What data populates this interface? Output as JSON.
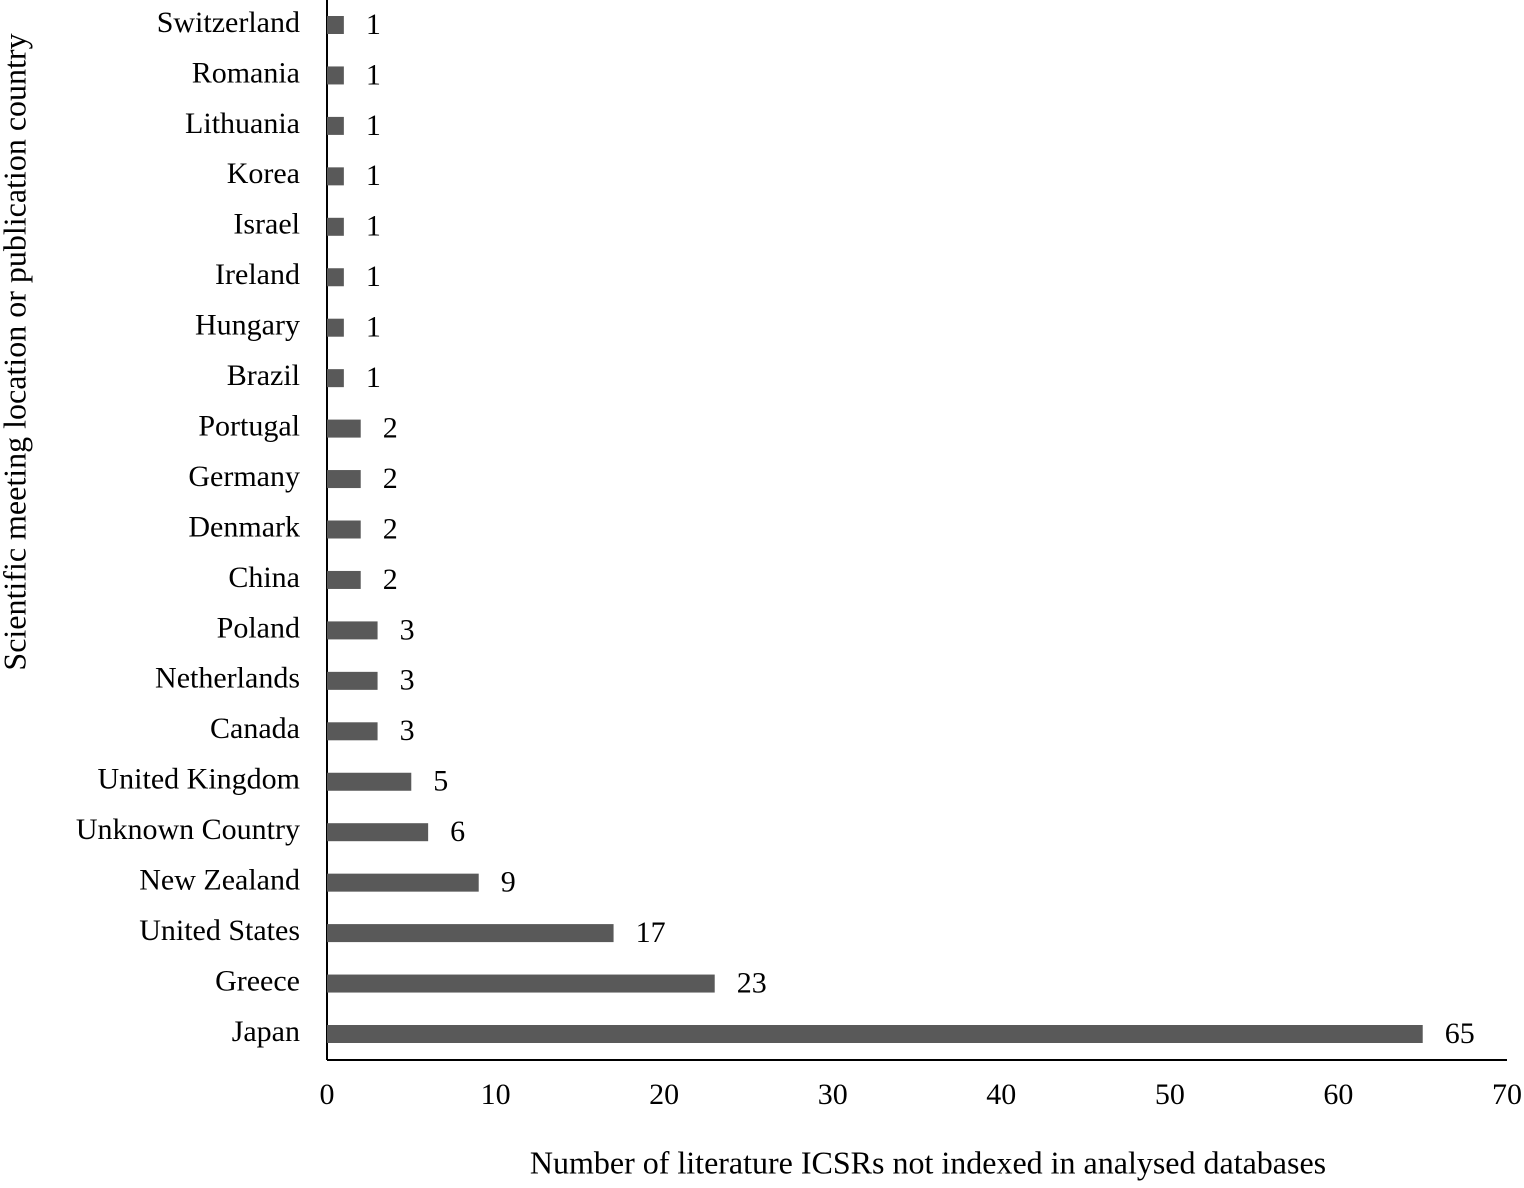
{
  "chart_data": {
    "type": "bar",
    "horizontal": true,
    "x_label": "Number of literature ICSRs not indexed in analysed databases",
    "y_label": "Scientific meeting location or publication country",
    "categories": [
      "Switzerland",
      "Romania",
      "Lithuania",
      "Korea",
      "Israel",
      "Ireland",
      "Hungary",
      "Brazil",
      "Portugal",
      "Germany",
      "Denmark",
      "China",
      "Poland",
      "Netherlands",
      "Canada",
      "United Kingdom",
      "Unknown Country",
      "New Zealand",
      "United States",
      "Greece",
      "Japan"
    ],
    "values": [
      1,
      1,
      1,
      1,
      1,
      1,
      1,
      1,
      2,
      2,
      2,
      2,
      3,
      3,
      3,
      5,
      6,
      9,
      17,
      23,
      65
    ],
    "color": "#595959",
    "xlim": [
      0,
      70
    ],
    "xticks": [
      0,
      10,
      20,
      30,
      40,
      50,
      60,
      70
    ],
    "grid": false
  }
}
